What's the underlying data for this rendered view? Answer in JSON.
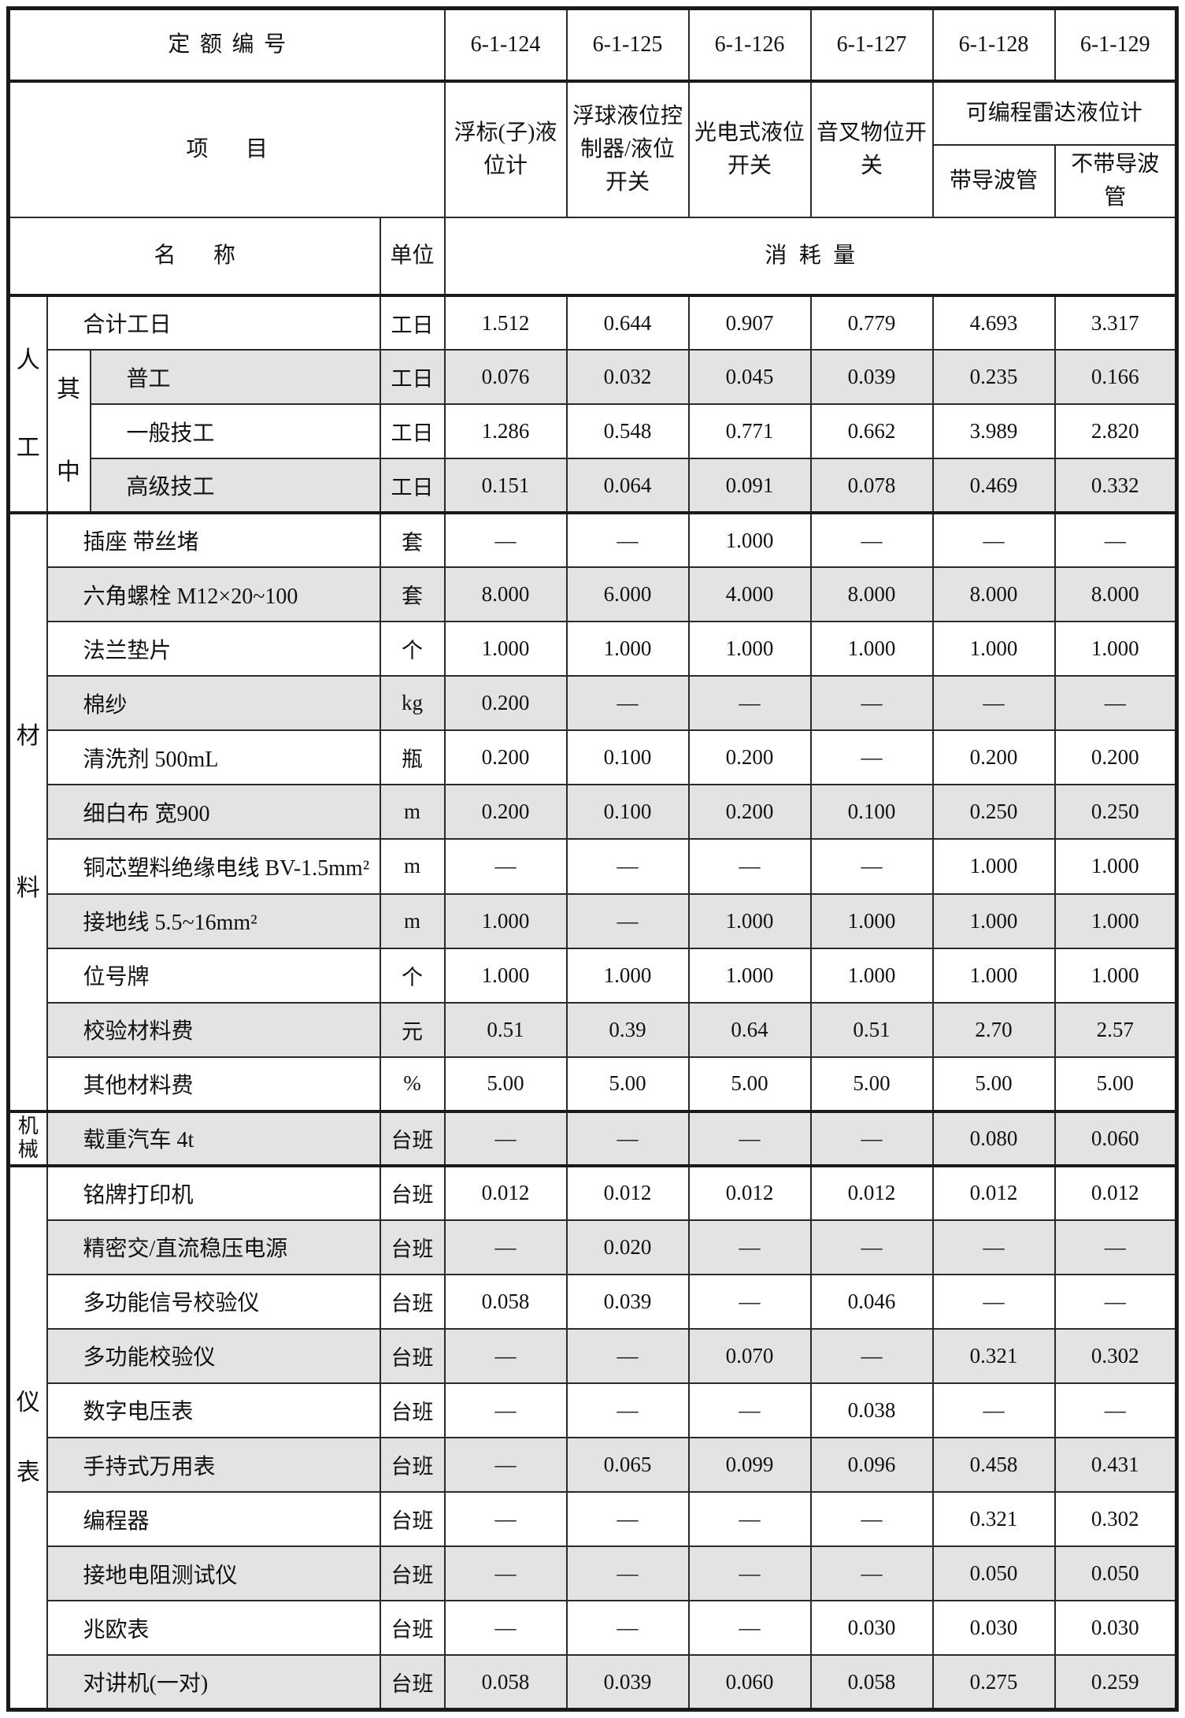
{
  "table": {
    "header": {
      "quota_label": "定额编号",
      "quota_codes": [
        "6-1-124",
        "6-1-125",
        "6-1-126",
        "6-1-127",
        "6-1-128",
        "6-1-129"
      ],
      "item_label": "项目",
      "item_columns": [
        "浮标(子)液位计",
        "浮球液位控制器/液位开关",
        "光电式液位开关",
        "音叉物位开关"
      ],
      "radar_group_label": "可编程雷达液位计",
      "radar_sub_columns": [
        "带导波管",
        "不带导波管"
      ],
      "name_label": "名称",
      "unit_label": "单位",
      "consumption_label": "消耗量"
    },
    "empty_value": "—",
    "shade_color": "#e3e3e3",
    "sections": [
      {
        "id": "labor",
        "group": "人工",
        "subgroup": "其中",
        "rows": [
          {
            "name": "合计工日",
            "unit": "工日",
            "values": [
              "1.512",
              "0.644",
              "0.907",
              "0.779",
              "4.693",
              "3.317"
            ],
            "shaded": false
          },
          {
            "name": "普工",
            "unit": "工日",
            "values": [
              "0.076",
              "0.032",
              "0.045",
              "0.039",
              "0.235",
              "0.166"
            ],
            "shaded": true
          },
          {
            "name": "一般技工",
            "unit": "工日",
            "values": [
              "1.286",
              "0.548",
              "0.771",
              "0.662",
              "3.989",
              "2.820"
            ],
            "shaded": false
          },
          {
            "name": "高级技工",
            "unit": "工日",
            "values": [
              "0.151",
              "0.064",
              "0.091",
              "0.078",
              "0.469",
              "0.332"
            ],
            "shaded": true
          }
        ]
      },
      {
        "id": "materials",
        "group": "材料",
        "rows": [
          {
            "name": "插座 带丝堵",
            "unit": "套",
            "values": [
              "—",
              "—",
              "1.000",
              "—",
              "—",
              "—"
            ],
            "shaded": false
          },
          {
            "name": "六角螺栓 M12×20~100",
            "unit": "套",
            "values": [
              "8.000",
              "6.000",
              "4.000",
              "8.000",
              "8.000",
              "8.000"
            ],
            "shaded": true
          },
          {
            "name": "法兰垫片",
            "unit": "个",
            "values": [
              "1.000",
              "1.000",
              "1.000",
              "1.000",
              "1.000",
              "1.000"
            ],
            "shaded": false
          },
          {
            "name": "棉纱",
            "unit": "kg",
            "values": [
              "0.200",
              "—",
              "—",
              "—",
              "—",
              "—"
            ],
            "shaded": true
          },
          {
            "name": "清洗剂 500mL",
            "unit": "瓶",
            "values": [
              "0.200",
              "0.100",
              "0.200",
              "—",
              "0.200",
              "0.200"
            ],
            "shaded": false
          },
          {
            "name": "细白布 宽900",
            "unit": "m",
            "values": [
              "0.200",
              "0.100",
              "0.200",
              "0.100",
              "0.250",
              "0.250"
            ],
            "shaded": true
          },
          {
            "name": "铜芯塑料绝缘电线 BV-1.5mm²",
            "unit": "m",
            "values": [
              "—",
              "—",
              "—",
              "—",
              "1.000",
              "1.000"
            ],
            "shaded": false
          },
          {
            "name": "接地线 5.5~16mm²",
            "unit": "m",
            "values": [
              "1.000",
              "—",
              "1.000",
              "1.000",
              "1.000",
              "1.000"
            ],
            "shaded": true
          },
          {
            "name": "位号牌",
            "unit": "个",
            "values": [
              "1.000",
              "1.000",
              "1.000",
              "1.000",
              "1.000",
              "1.000"
            ],
            "shaded": false
          },
          {
            "name": "校验材料费",
            "unit": "元",
            "values": [
              "0.51",
              "0.39",
              "0.64",
              "0.51",
              "2.70",
              "2.57"
            ],
            "shaded": true
          },
          {
            "name": "其他材料费",
            "unit": "%",
            "values": [
              "5.00",
              "5.00",
              "5.00",
              "5.00",
              "5.00",
              "5.00"
            ],
            "shaded": false
          }
        ]
      },
      {
        "id": "machinery",
        "group": "机械",
        "rows": [
          {
            "name": "载重汽车 4t",
            "unit": "台班",
            "values": [
              "—",
              "—",
              "—",
              "—",
              "0.080",
              "0.060"
            ],
            "shaded": true
          }
        ]
      },
      {
        "id": "instruments",
        "group": "仪表",
        "rows": [
          {
            "name": "铭牌打印机",
            "unit": "台班",
            "values": [
              "0.012",
              "0.012",
              "0.012",
              "0.012",
              "0.012",
              "0.012"
            ],
            "shaded": false
          },
          {
            "name": "精密交/直流稳压电源",
            "unit": "台班",
            "values": [
              "—",
              "0.020",
              "—",
              "—",
              "—",
              "—"
            ],
            "shaded": true
          },
          {
            "name": "多功能信号校验仪",
            "unit": "台班",
            "values": [
              "0.058",
              "0.039",
              "—",
              "0.046",
              "—",
              "—"
            ],
            "shaded": false
          },
          {
            "name": "多功能校验仪",
            "unit": "台班",
            "values": [
              "—",
              "—",
              "0.070",
              "—",
              "0.321",
              "0.302"
            ],
            "shaded": true
          },
          {
            "name": "数字电压表",
            "unit": "台班",
            "values": [
              "—",
              "—",
              "—",
              "0.038",
              "—",
              "—"
            ],
            "shaded": false
          },
          {
            "name": "手持式万用表",
            "unit": "台班",
            "values": [
              "—",
              "0.065",
              "0.099",
              "0.096",
              "0.458",
              "0.431"
            ],
            "shaded": true
          },
          {
            "name": "编程器",
            "unit": "台班",
            "values": [
              "—",
              "—",
              "—",
              "—",
              "0.321",
              "0.302"
            ],
            "shaded": false
          },
          {
            "name": "接地电阻测试仪",
            "unit": "台班",
            "values": [
              "—",
              "—",
              "—",
              "—",
              "0.050",
              "0.050"
            ],
            "shaded": true
          },
          {
            "name": "兆欧表",
            "unit": "台班",
            "values": [
              "—",
              "—",
              "—",
              "0.030",
              "0.030",
              "0.030"
            ],
            "shaded": false
          },
          {
            "name": "对讲机(一对)",
            "unit": "台班",
            "values": [
              "0.058",
              "0.039",
              "0.060",
              "0.058",
              "0.275",
              "0.259"
            ],
            "shaded": true
          }
        ]
      }
    ]
  }
}
